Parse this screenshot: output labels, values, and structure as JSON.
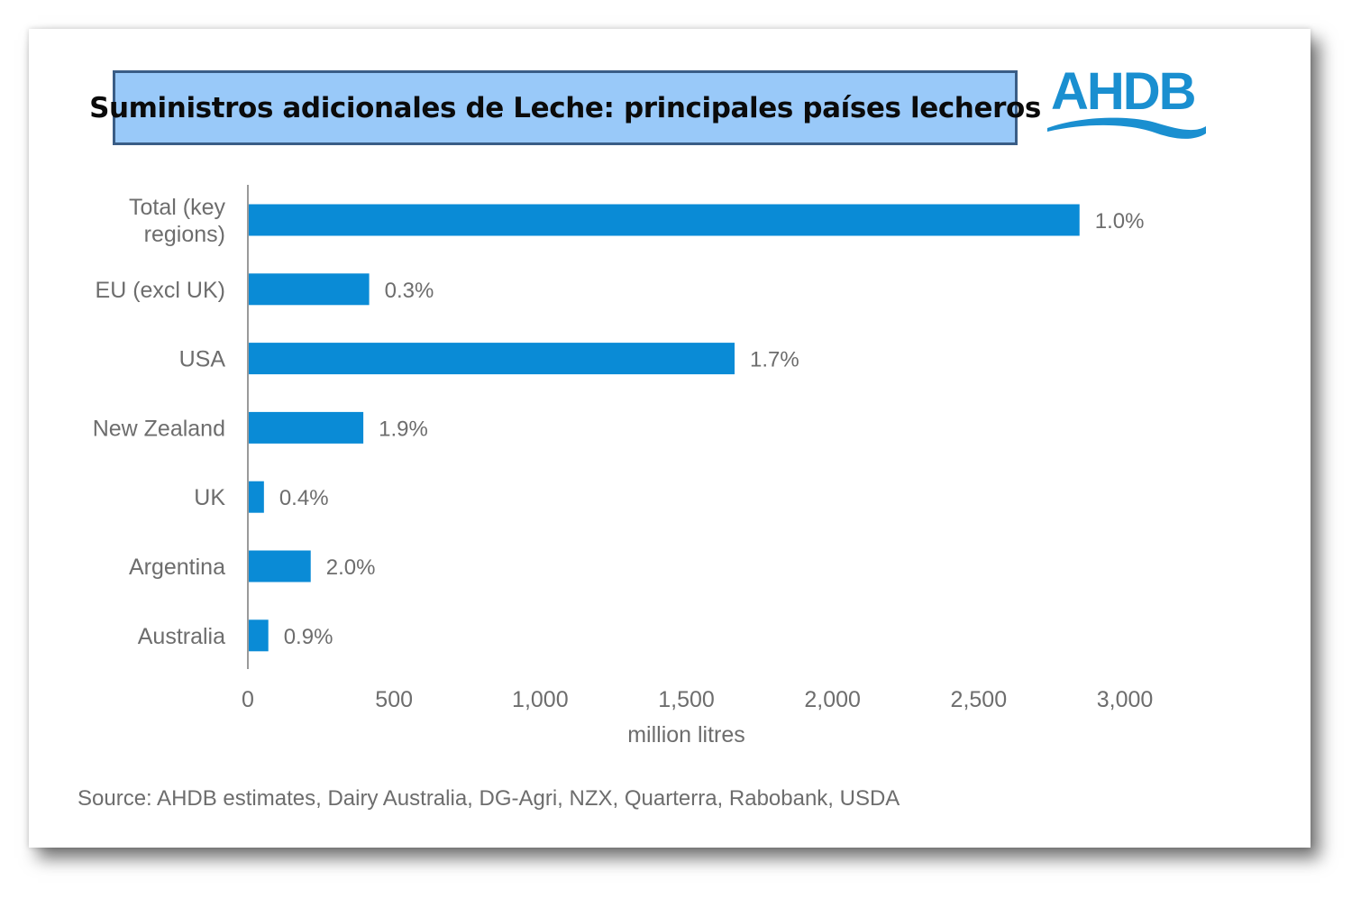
{
  "title": "Suministros adicionales de Leche: principales países lecheros",
  "logo": {
    "text": "AHDB",
    "color": "#1a8fd0"
  },
  "colors": {
    "bar": "#0a8bd6",
    "title_bg": "#99c9f9",
    "title_border": "#3a5d86",
    "text": "#6d6d6d"
  },
  "chart_data": {
    "type": "bar",
    "orientation": "horizontal",
    "categories": [
      "Total (key regions)",
      "EU (excl UK)",
      "USA",
      "New Zealand",
      "UK",
      "Argentina",
      "Australia"
    ],
    "category_lines": [
      [
        "Total (key",
        "regions)"
      ],
      [
        "EU (excl UK)"
      ],
      [
        "USA"
      ],
      [
        "New Zealand"
      ],
      [
        "UK"
      ],
      [
        "Argentina"
      ],
      [
        "Australia"
      ]
    ],
    "values": [
      2845,
      415,
      1665,
      395,
      55,
      215,
      70
    ],
    "data_labels": [
      "1.0%",
      "0.3%",
      "1.7%",
      "1.9%",
      "0.4%",
      "2.0%",
      "0.9%"
    ],
    "xlabel": "million litres",
    "xlim": [
      0,
      3000
    ],
    "xticks": [
      0,
      500,
      1000,
      1500,
      2000,
      2500,
      3000
    ],
    "xtick_labels": [
      "0",
      "500",
      "1,000",
      "1,500",
      "2,000",
      "2,500",
      "3,000"
    ],
    "grid": false,
    "legend": "none"
  },
  "source": "Source: AHDB estimates, Dairy Australia, DG-Agri, NZX, Quarterra, Rabobank, USDA"
}
